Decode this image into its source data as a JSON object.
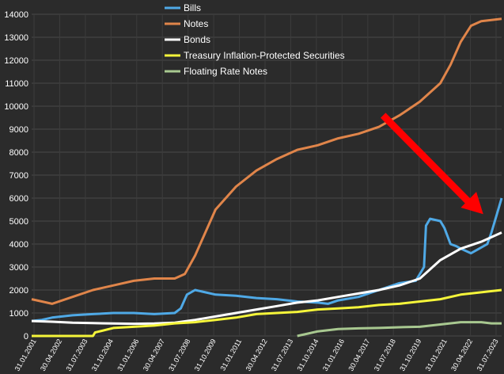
{
  "chart_data": {
    "type": "line",
    "ylim": [
      0,
      14000
    ],
    "y_ticks": [
      0,
      1000,
      2000,
      3000,
      4000,
      5000,
      6000,
      7000,
      8000,
      9000,
      10000,
      11000,
      12000,
      13000,
      14000
    ],
    "x_ticks": [
      "31.01.2001",
      "30.04.2002",
      "31.07.2003",
      "31.10.2004",
      "31.01.2006",
      "30.04.2007",
      "31.07.2008",
      "31.10.2009",
      "31.01.2011",
      "30.04.2012",
      "31.07.2013",
      "31.10.2014",
      "31.01.2016",
      "30.04.2017",
      "31.07.2018",
      "31.10.2019",
      "31.01.2021",
      "30.04.2022",
      "31.07.2023"
    ],
    "x_range": [
      2001.0,
      2024.0
    ],
    "grid": true,
    "legend_position": "top-center",
    "series": [
      {
        "name": "Bills",
        "color": "#4fa9e6",
        "points": [
          [
            2001.0,
            650
          ],
          [
            2001.5,
            700
          ],
          [
            2002.0,
            800
          ],
          [
            2003.0,
            900
          ],
          [
            2004.0,
            950
          ],
          [
            2005.0,
            1000
          ],
          [
            2006.0,
            1000
          ],
          [
            2007.0,
            950
          ],
          [
            2008.0,
            1000
          ],
          [
            2008.3,
            1200
          ],
          [
            2008.6,
            1800
          ],
          [
            2009.0,
            2000
          ],
          [
            2009.5,
            1900
          ],
          [
            2010.0,
            1800
          ],
          [
            2011.0,
            1750
          ],
          [
            2012.0,
            1650
          ],
          [
            2013.0,
            1600
          ],
          [
            2014.0,
            1500
          ],
          [
            2015.0,
            1450
          ],
          [
            2015.5,
            1400
          ],
          [
            2016.0,
            1550
          ],
          [
            2017.0,
            1700
          ],
          [
            2018.0,
            2000
          ],
          [
            2019.0,
            2300
          ],
          [
            2019.8,
            2400
          ],
          [
            2020.2,
            3000
          ],
          [
            2020.3,
            4800
          ],
          [
            2020.5,
            5100
          ],
          [
            2021.0,
            5000
          ],
          [
            2021.2,
            4700
          ],
          [
            2021.5,
            4000
          ],
          [
            2021.8,
            3900
          ],
          [
            2022.0,
            3800
          ],
          [
            2022.5,
            3600
          ],
          [
            2022.9,
            3800
          ],
          [
            2023.3,
            4000
          ],
          [
            2023.5,
            4500
          ],
          [
            2023.7,
            5100
          ],
          [
            2024.0,
            6000
          ]
        ]
      },
      {
        "name": "Notes",
        "color": "#e0854a",
        "points": [
          [
            2001.0,
            1600
          ],
          [
            2002.0,
            1400
          ],
          [
            2003.0,
            1700
          ],
          [
            2004.0,
            2000
          ],
          [
            2005.0,
            2200
          ],
          [
            2006.0,
            2400
          ],
          [
            2007.0,
            2500
          ],
          [
            2008.0,
            2500
          ],
          [
            2008.5,
            2700
          ],
          [
            2009.0,
            3500
          ],
          [
            2009.5,
            4500
          ],
          [
            2010.0,
            5500
          ],
          [
            2011.0,
            6500
          ],
          [
            2012.0,
            7200
          ],
          [
            2013.0,
            7700
          ],
          [
            2014.0,
            8100
          ],
          [
            2015.0,
            8300
          ],
          [
            2016.0,
            8600
          ],
          [
            2017.0,
            8800
          ],
          [
            2018.0,
            9100
          ],
          [
            2019.0,
            9600
          ],
          [
            2020.0,
            10200
          ],
          [
            2021.0,
            11000
          ],
          [
            2021.5,
            11800
          ],
          [
            2022.0,
            12800
          ],
          [
            2022.5,
            13500
          ],
          [
            2023.0,
            13700
          ],
          [
            2024.0,
            13800
          ]
        ]
      },
      {
        "name": "Bonds",
        "color": "#ffffff",
        "points": [
          [
            2001.0,
            650
          ],
          [
            2002.0,
            620
          ],
          [
            2003.0,
            580
          ],
          [
            2004.0,
            560
          ],
          [
            2005.0,
            540
          ],
          [
            2006.0,
            530
          ],
          [
            2007.0,
            540
          ],
          [
            2008.0,
            580
          ],
          [
            2009.0,
            700
          ],
          [
            2010.0,
            850
          ],
          [
            2011.0,
            1000
          ],
          [
            2012.0,
            1150
          ],
          [
            2013.0,
            1300
          ],
          [
            2014.0,
            1450
          ],
          [
            2015.0,
            1550
          ],
          [
            2016.0,
            1700
          ],
          [
            2017.0,
            1850
          ],
          [
            2018.0,
            2000
          ],
          [
            2019.0,
            2200
          ],
          [
            2020.0,
            2500
          ],
          [
            2021.0,
            3300
          ],
          [
            2022.0,
            3800
          ],
          [
            2023.0,
            4100
          ],
          [
            2024.0,
            4500
          ]
        ]
      },
      {
        "name": "Treasury Inflation-Protected Securities",
        "color": "#f5f53a",
        "points": [
          [
            2001.0,
            0
          ],
          [
            2004.0,
            0
          ],
          [
            2004.1,
            150
          ],
          [
            2005.0,
            350
          ],
          [
            2006.0,
            400
          ],
          [
            2007.0,
            450
          ],
          [
            2008.0,
            550
          ],
          [
            2009.0,
            600
          ],
          [
            2010.0,
            700
          ],
          [
            2011.0,
            800
          ],
          [
            2012.0,
            950
          ],
          [
            2013.0,
            1000
          ],
          [
            2014.0,
            1050
          ],
          [
            2015.0,
            1150
          ],
          [
            2016.0,
            1200
          ],
          [
            2017.0,
            1250
          ],
          [
            2018.0,
            1350
          ],
          [
            2019.0,
            1400
          ],
          [
            2020.0,
            1500
          ],
          [
            2021.0,
            1600
          ],
          [
            2022.0,
            1800
          ],
          [
            2023.0,
            1900
          ],
          [
            2024.0,
            2000
          ]
        ]
      },
      {
        "name": "Floating Rate Notes",
        "color": "#a8c890",
        "points": [
          [
            2014.0,
            0
          ],
          [
            2014.5,
            100
          ],
          [
            2015.0,
            200
          ],
          [
            2016.0,
            300
          ],
          [
            2017.0,
            330
          ],
          [
            2018.0,
            350
          ],
          [
            2019.0,
            380
          ],
          [
            2020.0,
            400
          ],
          [
            2021.0,
            500
          ],
          [
            2022.0,
            600
          ],
          [
            2023.0,
            600
          ],
          [
            2023.5,
            550
          ],
          [
            2024.0,
            550
          ]
        ]
      }
    ],
    "annotations": [
      {
        "type": "arrow",
        "color": "#ff0000",
        "from": [
          2018.2,
          9600
        ],
        "to": [
          2023.1,
          5300
        ]
      }
    ]
  }
}
